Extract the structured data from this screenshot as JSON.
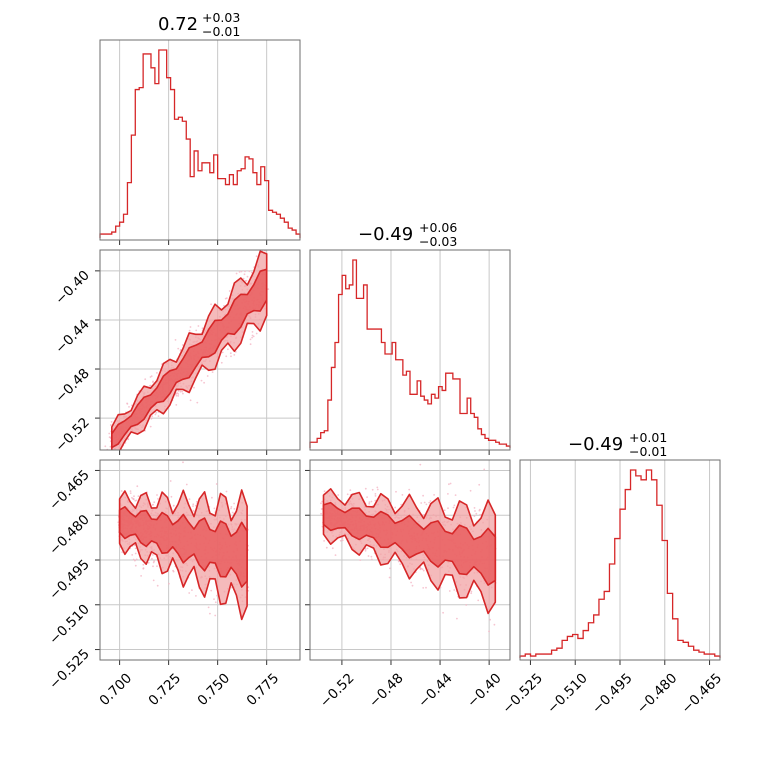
{
  "colors": {
    "line": "#d62728",
    "fill_dark": "#e8595a",
    "fill_light": "#f2a3a4",
    "scatter": "#f4b6c6",
    "grid": "#c8c8c8",
    "frame": "#6e6e6e"
  },
  "chart_data": {
    "type": "corner",
    "grid": true,
    "parameters": [
      {
        "title_value": "0.72",
        "title_plus": "+0.03",
        "title_minus": "−0.01",
        "range": [
          0.69,
          0.792
        ],
        "ticks": [
          0.7,
          0.725,
          0.75,
          0.775
        ],
        "tick_labels": [
          "0.700",
          "0.725",
          "0.750",
          "0.775"
        ]
      },
      {
        "title_value": "−0.49",
        "title_plus": "+0.06",
        "title_minus": "−0.03",
        "range": [
          -0.546,
          -0.383
        ],
        "ticks": [
          -0.52,
          -0.48,
          -0.44,
          -0.4
        ],
        "tick_labels": [
          "−0.52",
          "−0.48",
          "−0.44",
          "−0.40"
        ]
      },
      {
        "title_value": "−0.49",
        "title_plus": "+0.01",
        "title_minus": "−0.01",
        "range": [
          -0.5285,
          -0.4615
        ],
        "ticks": [
          -0.525,
          -0.51,
          -0.495,
          -0.48,
          -0.465
        ],
        "tick_labels": [
          "−0.525",
          "−0.510",
          "−0.495",
          "−0.480",
          "−0.465"
        ]
      }
    ],
    "histograms": [
      {
        "param": 0,
        "range": [
          0.69,
          0.792
        ],
        "values": [
          0.02,
          0.02,
          0.02,
          0.03,
          0.06,
          0.08,
          0.12,
          0.28,
          0.52,
          0.75,
          0.76,
          0.93,
          0.93,
          0.86,
          0.78,
          0.95,
          0.95,
          0.81,
          0.75,
          0.6,
          0.61,
          0.59,
          0.5,
          0.31,
          0.44,
          0.34,
          0.38,
          0.38,
          0.33,
          0.42,
          0.3,
          0.3,
          0.27,
          0.32,
          0.27,
          0.34,
          0.35,
          0.41,
          0.4,
          0.33,
          0.27,
          0.36,
          0.29,
          0.14,
          0.13,
          0.12,
          0.1,
          0.08,
          0.05,
          0.04,
          0.02
        ]
      },
      {
        "param": 1,
        "range": [
          -0.546,
          -0.383
        ],
        "values": [
          0.03,
          0.03,
          0.05,
          0.08,
          0.09,
          0.25,
          0.42,
          0.55,
          0.8,
          0.9,
          0.83,
          0.85,
          0.98,
          0.78,
          0.78,
          0.85,
          0.62,
          0.62,
          0.62,
          0.62,
          0.55,
          0.49,
          0.49,
          0.55,
          0.46,
          0.46,
          0.38,
          0.4,
          0.28,
          0.28,
          0.35,
          0.27,
          0.25,
          0.23,
          0.28,
          0.26,
          0.32,
          0.3,
          0.39,
          0.39,
          0.36,
          0.36,
          0.18,
          0.18,
          0.26,
          0.18,
          0.16,
          0.1,
          0.07,
          0.05,
          0.04,
          0.04,
          0.03,
          0.02,
          0.02,
          0.01
        ]
      },
      {
        "param": 2,
        "range": [
          -0.5285,
          -0.4615
        ],
        "values": [
          0.01,
          0.02,
          0.01,
          0.02,
          0.02,
          0.02,
          0.04,
          0.05,
          0.09,
          0.11,
          0.12,
          0.1,
          0.14,
          0.18,
          0.22,
          0.3,
          0.34,
          0.48,
          0.61,
          0.76,
          0.86,
          0.96,
          0.93,
          0.91,
          0.96,
          0.91,
          0.78,
          0.6,
          0.33,
          0.2,
          0.09,
          0.08,
          0.06,
          0.04,
          0.03,
          0.02,
          0.02,
          0.01
        ]
      }
    ],
    "scatter_2d": [
      {
        "x_param": 0,
        "y_param": 1,
        "description_model": "linear",
        "x_range": [
          0.696,
          0.775
        ],
        "slope": 1.61,
        "intercept": -1.659,
        "spread": 0.006
      },
      {
        "x_param": 0,
        "y_param": 2,
        "description_model": "linear",
        "x_range": [
          0.7,
          0.765
        ],
        "slope": -0.18,
        "intercept": -0.356,
        "spread": 0.004
      },
      {
        "x_param": 1,
        "y_param": 2,
        "description_model": "linear",
        "x_range": [
          -0.535,
          -0.395
        ],
        "slope": -0.105,
        "intercept": -0.536,
        "spread": 0.0035
      }
    ]
  }
}
